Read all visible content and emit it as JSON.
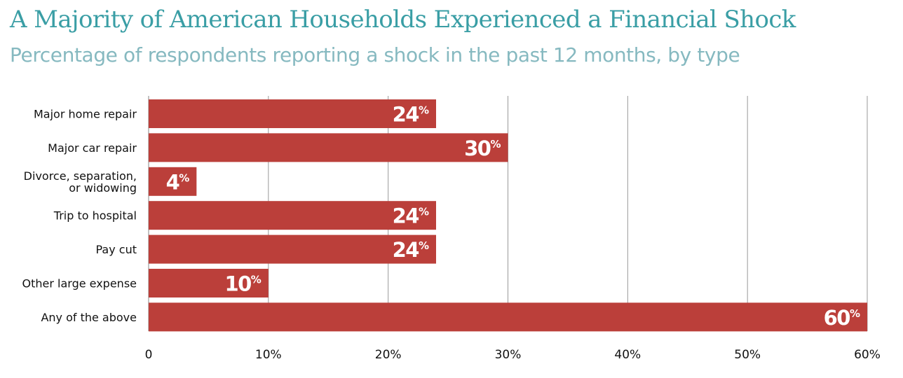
{
  "chart_data": {
    "type": "bar",
    "orientation": "horizontal",
    "title": "A Majority of American Households Experienced a Financial Shock",
    "subtitle": "Percentage of respondents reporting a shock in the past 12 months, by type",
    "categories": [
      "Major home repair",
      "Major car repair",
      "Divorce, separation, or widowing",
      "Trip to hospital",
      "Pay cut",
      "Other large expense",
      "Any of the above"
    ],
    "category_label_lines": [
      [
        "Major home repair"
      ],
      [
        "Major car repair"
      ],
      [
        "Divorce, separation,",
        "or widowing"
      ],
      [
        "Trip to hospital"
      ],
      [
        "Pay cut"
      ],
      [
        "Other large expense"
      ],
      [
        "Any of the above"
      ]
    ],
    "values": [
      24,
      30,
      4,
      24,
      24,
      10,
      60
    ],
    "data_labels": [
      "24",
      "30",
      "4",
      "24",
      "24",
      "10",
      "60"
    ],
    "data_label_suffix": "%",
    "xlim": [
      0,
      60
    ],
    "xticks": [
      0,
      10,
      20,
      30,
      40,
      50,
      60
    ],
    "xtick_labels": [
      "0",
      "10%",
      "20%",
      "30%",
      "40%",
      "50%",
      "60%"
    ],
    "xlabel": "",
    "ylabel": "",
    "grid": "vertical",
    "legend": "none",
    "colors": {
      "bar": "#bb3f3a",
      "label_inside": "#ffffff",
      "label_outside": "#bb3f3a",
      "title": "#3a9ea5",
      "subtitle": "#86b9c0",
      "grid": "#999999",
      "axis_text": "#111111"
    }
  }
}
